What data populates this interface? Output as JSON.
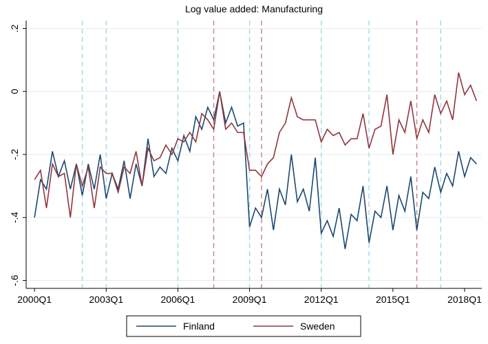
{
  "chart_data": {
    "type": "line",
    "title": "Log value added: Manufacturing",
    "x": [
      2000,
      2000.25,
      2000.5,
      2000.75,
      2001,
      2001.25,
      2001.5,
      2001.75,
      2002,
      2002.25,
      2002.5,
      2002.75,
      2003,
      2003.25,
      2003.5,
      2003.75,
      2004,
      2004.25,
      2004.5,
      2004.75,
      2005,
      2005.25,
      2005.5,
      2005.75,
      2006,
      2006.25,
      2006.5,
      2006.75,
      2007,
      2007.25,
      2007.5,
      2007.75,
      2008,
      2008.25,
      2008.5,
      2008.75,
      2009,
      2009.25,
      2009.5,
      2009.75,
      2010,
      2010.25,
      2010.5,
      2010.75,
      2011,
      2011.25,
      2011.5,
      2011.75,
      2012,
      2012.25,
      2012.5,
      2012.75,
      2013,
      2013.25,
      2013.5,
      2013.75,
      2014,
      2014.25,
      2014.5,
      2014.75,
      2015,
      2015.25,
      2015.5,
      2015.75,
      2016,
      2016.25,
      2016.5,
      2016.75,
      2017,
      2017.25,
      2017.5,
      2017.75,
      2018,
      2018.25,
      2018.5
    ],
    "series": [
      {
        "name": "Finland",
        "color": "#1a476f",
        "values": [
          -0.4,
          -0.28,
          -0.31,
          -0.19,
          -0.27,
          -0.22,
          -0.31,
          -0.23,
          -0.33,
          -0.23,
          -0.31,
          -0.2,
          -0.34,
          -0.26,
          -0.31,
          -0.22,
          -0.34,
          -0.23,
          -0.3,
          -0.15,
          -0.27,
          -0.24,
          -0.26,
          -0.18,
          -0.22,
          -0.14,
          -0.19,
          -0.08,
          -0.12,
          -0.05,
          -0.09,
          0.0,
          -0.1,
          -0.05,
          -0.11,
          -0.1,
          -0.43,
          -0.37,
          -0.4,
          -0.31,
          -0.44,
          -0.31,
          -0.36,
          -0.2,
          -0.35,
          -0.31,
          -0.38,
          -0.21,
          -0.45,
          -0.41,
          -0.46,
          -0.37,
          -0.5,
          -0.39,
          -0.41,
          -0.3,
          -0.48,
          -0.38,
          -0.4,
          -0.3,
          -0.44,
          -0.33,
          -0.38,
          -0.27,
          -0.44,
          -0.32,
          -0.34,
          -0.24,
          -0.32,
          -0.26,
          -0.3,
          -0.19,
          -0.27,
          -0.21,
          -0.23
        ]
      },
      {
        "name": "Sweden",
        "color": "#90353b",
        "values": [
          -0.28,
          -0.25,
          -0.37,
          -0.23,
          -0.27,
          -0.26,
          -0.4,
          -0.23,
          -0.3,
          -0.24,
          -0.37,
          -0.24,
          -0.26,
          -0.26,
          -0.32,
          -0.24,
          -0.26,
          -0.19,
          -0.3,
          -0.18,
          -0.22,
          -0.21,
          -0.17,
          -0.2,
          -0.15,
          -0.16,
          -0.13,
          -0.16,
          -0.07,
          -0.09,
          -0.12,
          0.0,
          -0.12,
          -0.1,
          -0.13,
          -0.13,
          -0.25,
          -0.25,
          -0.27,
          -0.23,
          -0.21,
          -0.13,
          -0.1,
          -0.02,
          -0.08,
          -0.09,
          -0.09,
          -0.09,
          -0.16,
          -0.12,
          -0.14,
          -0.13,
          -0.17,
          -0.15,
          -0.15,
          -0.07,
          -0.18,
          -0.12,
          -0.11,
          -0.01,
          -0.2,
          -0.09,
          -0.13,
          -0.03,
          -0.15,
          -0.09,
          -0.13,
          -0.01,
          -0.07,
          -0.03,
          -0.09,
          0.06,
          -0.01,
          0.02,
          -0.03
        ]
      }
    ],
    "xlim": [
      1999.65,
      2018.72
    ],
    "xticks": [
      {
        "value": 2000,
        "label": "2000Q1"
      },
      {
        "value": 2003,
        "label": "2003Q1"
      },
      {
        "value": 2006,
        "label": "2006Q1"
      },
      {
        "value": 2009,
        "label": "2009Q1"
      },
      {
        "value": 2012,
        "label": "2012Q1"
      },
      {
        "value": 2015,
        "label": "2015Q1"
      },
      {
        "value": 2018,
        "label": "2018Q1"
      }
    ],
    "ylim": [
      -0.625,
      0.225
    ],
    "yticks": [
      {
        "value": 0.2,
        "label": ".2"
      },
      0,
      {
        "value": -0.2,
        "label": "-.2"
      },
      {
        "value": -0.4,
        "label": "-.4"
      },
      {
        "value": -0.6,
        "label": "-.6"
      }
    ],
    "grid": true,
    "legend": "bottom",
    "vlines": [
      {
        "x": 2002,
        "color": "#a6d8e6"
      },
      {
        "x": 2003,
        "color": "#a6d8e6"
      },
      {
        "x": 2006,
        "color": "#a6d8e6"
      },
      {
        "x": 2009,
        "color": "#a6d8e6"
      },
      {
        "x": 2012,
        "color": "#a6d8e6"
      },
      {
        "x": 2014,
        "color": "#a6d8e6"
      },
      {
        "x": 2017,
        "color": "#a6d8e6"
      },
      {
        "x": 2007.5,
        "color": "#c48a8a"
      },
      {
        "x": 2009.5,
        "color": "#c48a8a"
      },
      {
        "x": 2016,
        "color": "#c48a8a"
      }
    ]
  }
}
